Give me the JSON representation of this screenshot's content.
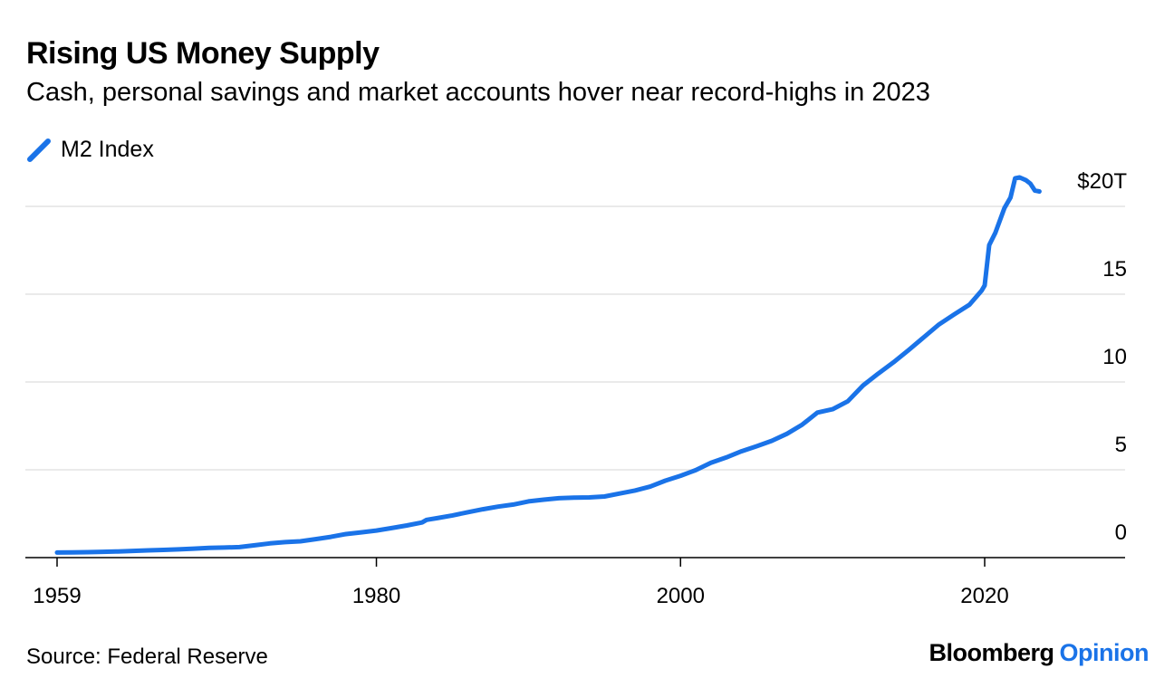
{
  "chart_data": {
    "type": "line",
    "title": "Rising US Money Supply",
    "subtitle": "Cash, personal savings and market accounts hover near record-highs in 2023",
    "xlabel": "",
    "ylabel": "",
    "xlim": [
      1959,
      2028.5
    ],
    "ylim": [
      0,
      20
    ],
    "x_ticks": [
      1959,
      1980,
      2000,
      2020
    ],
    "x_tick_labels": [
      "1959",
      "1980",
      "2000",
      "2020"
    ],
    "y_ticks": [
      0,
      5,
      10,
      15,
      20
    ],
    "y_tick_labels": [
      "0",
      "5",
      "10",
      "15",
      "$20T"
    ],
    "grid": true,
    "legend_position": "top-left",
    "series": [
      {
        "name": "M2 Index",
        "color": "#1a73e8",
        "points": [
          [
            1959.0,
            0.29
          ],
          [
            1960.0,
            0.3
          ],
          [
            1961.0,
            0.31
          ],
          [
            1962.0,
            0.33
          ],
          [
            1963.0,
            0.35
          ],
          [
            1964.0,
            0.38
          ],
          [
            1965.0,
            0.41
          ],
          [
            1966.0,
            0.44
          ],
          [
            1967.0,
            0.47
          ],
          [
            1968.0,
            0.51
          ],
          [
            1969.0,
            0.55
          ],
          [
            1970.0,
            0.57
          ],
          [
            1971.0,
            0.6
          ],
          [
            1972.0,
            0.7
          ],
          [
            1973.0,
            0.81
          ],
          [
            1974.0,
            0.88
          ],
          [
            1975.0,
            0.93
          ],
          [
            1976.0,
            1.05
          ],
          [
            1977.0,
            1.18
          ],
          [
            1978.0,
            1.34
          ],
          [
            1979.0,
            1.44
          ],
          [
            1980.0,
            1.54
          ],
          [
            1981.0,
            1.68
          ],
          [
            1982.0,
            1.83
          ],
          [
            1983.0,
            2.0
          ],
          [
            1983.3,
            2.15
          ],
          [
            1984.0,
            2.25
          ],
          [
            1985.0,
            2.4
          ],
          [
            1986.0,
            2.58
          ],
          [
            1987.0,
            2.75
          ],
          [
            1988.0,
            2.9
          ],
          [
            1989.0,
            3.02
          ],
          [
            1990.0,
            3.2
          ],
          [
            1991.0,
            3.3
          ],
          [
            1992.0,
            3.38
          ],
          [
            1993.0,
            3.41
          ],
          [
            1994.0,
            3.43
          ],
          [
            1995.0,
            3.48
          ],
          [
            1996.0,
            3.65
          ],
          [
            1997.0,
            3.82
          ],
          [
            1998.0,
            4.04
          ],
          [
            1999.0,
            4.38
          ],
          [
            2000.0,
            4.66
          ],
          [
            2001.0,
            4.98
          ],
          [
            2002.0,
            5.4
          ],
          [
            2003.0,
            5.7
          ],
          [
            2004.0,
            6.05
          ],
          [
            2005.0,
            6.34
          ],
          [
            2006.0,
            6.65
          ],
          [
            2007.0,
            7.05
          ],
          [
            2008.0,
            7.57
          ],
          [
            2009.0,
            8.26
          ],
          [
            2010.0,
            8.45
          ],
          [
            2011.0,
            8.9
          ],
          [
            2012.0,
            9.8
          ],
          [
            2013.0,
            10.48
          ],
          [
            2014.0,
            11.12
          ],
          [
            2015.0,
            11.82
          ],
          [
            2016.0,
            12.55
          ],
          [
            2017.0,
            13.28
          ],
          [
            2018.0,
            13.85
          ],
          [
            2019.0,
            14.4
          ],
          [
            2019.8,
            15.2
          ],
          [
            2020.0,
            15.5
          ],
          [
            2020.3,
            17.8
          ],
          [
            2020.7,
            18.5
          ],
          [
            2021.0,
            19.2
          ],
          [
            2021.3,
            19.9
          ],
          [
            2021.7,
            20.5
          ],
          [
            2022.0,
            21.6
          ],
          [
            2022.3,
            21.65
          ],
          [
            2022.7,
            21.5
          ],
          [
            2023.0,
            21.3
          ],
          [
            2023.3,
            20.9
          ],
          [
            2023.6,
            20.85
          ]
        ]
      }
    ]
  },
  "footer": {
    "source": "Source: Federal Reserve",
    "brand_main": "Bloomberg",
    "brand_accent": "Opinion"
  }
}
